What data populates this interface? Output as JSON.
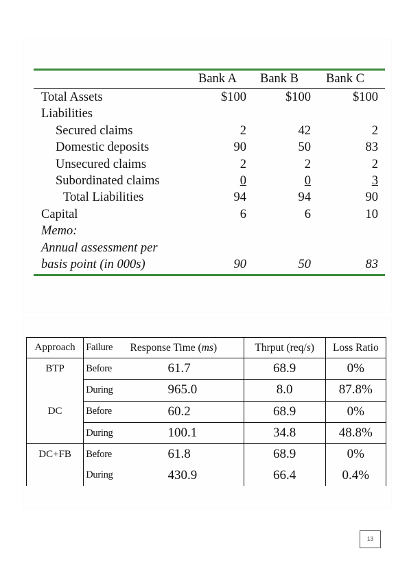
{
  "balance_table": {
    "columns": [
      "Bank A",
      "Bank B",
      "Bank C"
    ],
    "rows": [
      {
        "label": "Total Assets",
        "values": [
          "$100",
          "$100",
          "$100"
        ]
      },
      {
        "label": "Liabilities",
        "values": [
          "",
          "",
          ""
        ]
      },
      {
        "label": "Secured claims",
        "values": [
          "2",
          "42",
          "2"
        ]
      },
      {
        "label": "Domestic deposits",
        "values": [
          "90",
          "50",
          "83"
        ]
      },
      {
        "label": "Unsecured claims",
        "values": [
          "2",
          "2",
          "2"
        ]
      },
      {
        "label": "Subordinated claims",
        "values": [
          "0",
          "0",
          "3"
        ]
      },
      {
        "label": "Total Liabilities",
        "values": [
          "94",
          "94",
          "90"
        ]
      },
      {
        "label": "Capital",
        "values": [
          "6",
          "6",
          "10"
        ]
      },
      {
        "label": "Memo:",
        "values": [
          "",
          "",
          ""
        ]
      },
      {
        "label": "Annual assessment per",
        "values": [
          "",
          "",
          ""
        ]
      },
      {
        "label": "basis point (in 000s)",
        "values": [
          "90",
          "50",
          "83"
        ]
      }
    ]
  },
  "performance_table": {
    "headers": {
      "approach": "Approach",
      "failure": "Failure",
      "response_time": "Response Time (",
      "response_unit": "ms",
      "throughput": "Thrput (req/",
      "throughput_unit": "s",
      "loss_ratio": "Loss Ratio"
    },
    "groups": [
      {
        "approach": "BTP",
        "rows": [
          {
            "failure": "Before",
            "response_time": "61.7",
            "throughput": "68.9",
            "loss_ratio": "0%"
          },
          {
            "failure": "During",
            "response_time": "965.0",
            "throughput": "8.0",
            "loss_ratio": "87.8%"
          }
        ]
      },
      {
        "approach": "DC",
        "rows": [
          {
            "failure": "Before",
            "response_time": "60.2",
            "throughput": "68.9",
            "loss_ratio": "0%"
          },
          {
            "failure": "During",
            "response_time": "100.1",
            "throughput": "34.8",
            "loss_ratio": "48.8%"
          }
        ]
      },
      {
        "approach": "DC+FB",
        "rows": [
          {
            "failure": "Before",
            "response_time": "61.8",
            "throughput": "68.9",
            "loss_ratio": "0%"
          },
          {
            "failure": "During",
            "response_time": "430.9",
            "throughput": "66.4",
            "loss_ratio": "0.4%"
          }
        ]
      }
    ]
  },
  "page_number": "13"
}
